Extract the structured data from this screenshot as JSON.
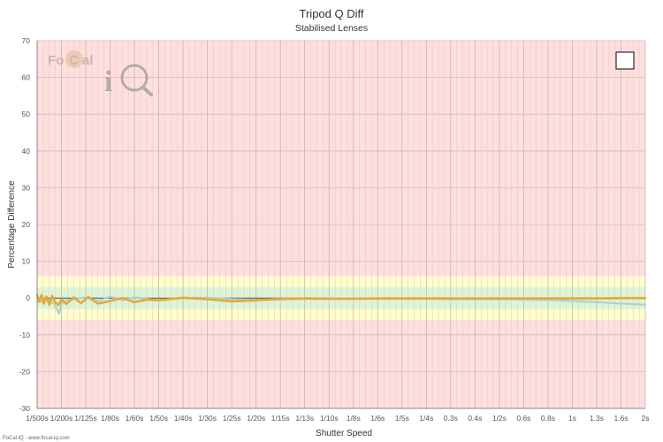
{
  "chart_data": {
    "type": "line",
    "title": "Tripod Q Diff",
    "subtitle": "Stabilised Lenses",
    "xlabel": "Shutter Speed",
    "ylabel": "Percentage Difference",
    "ylim": [
      -30,
      70
    ],
    "yticks": [
      -30,
      -20,
      -10,
      0,
      10,
      20,
      30,
      40,
      50,
      60,
      70
    ],
    "x_tick_labels": [
      "1/500s",
      "1/200s",
      "1/125s",
      "1/80s",
      "1/60s",
      "1/50s",
      "1/40s",
      "1/30s",
      "1/25s",
      "1/20s",
      "1/15s",
      "1/13s",
      "1/10s",
      "1/8s",
      "1/6s",
      "1/5s",
      "1/4s",
      "0.3s",
      "0.4s",
      "1/2s",
      "0.6s",
      "0.8s",
      "1s",
      "1.3s",
      "1.6s",
      "2s"
    ],
    "grid": true,
    "bands": [
      {
        "name": "red",
        "from": -30,
        "to": 70,
        "color": "#ffdede"
      },
      {
        "name": "yellow",
        "from": -6,
        "to": 6,
        "color": "#ffffcc"
      },
      {
        "name": "green",
        "from": -3,
        "to": 3,
        "color": "#ddf5d5"
      }
    ],
    "series": [
      {
        "color": "#a9d3d3",
        "points": [
          [
            0.0,
            0.6
          ],
          [
            0.1,
            -0.4
          ],
          [
            0.22,
            -1.2
          ],
          [
            0.35,
            0.3
          ],
          [
            0.5,
            -0.8
          ],
          [
            0.7,
            -1.6
          ],
          [
            0.9,
            -4.2
          ],
          [
            1.0,
            -1.5
          ],
          [
            1.2,
            -0.6
          ],
          [
            1.5,
            -0.3
          ],
          [
            2.0,
            0.2
          ],
          [
            2.5,
            -0.8
          ],
          [
            3.0,
            0.4
          ],
          [
            3.5,
            -0.5
          ],
          [
            4.0,
            0.2
          ],
          [
            5.0,
            -0.6
          ],
          [
            6.0,
            0.0
          ],
          [
            7.0,
            0.1
          ],
          [
            8.0,
            -0.3
          ],
          [
            9.0,
            -0.5
          ],
          [
            10.0,
            -0.4
          ],
          [
            11.0,
            -0.2
          ],
          [
            12.0,
            -0.1
          ],
          [
            13.0,
            -0.1
          ],
          [
            14.0,
            -0.2
          ],
          [
            15.0,
            -0.2
          ],
          [
            16.0,
            -0.2
          ],
          [
            17.0,
            -0.3
          ],
          [
            18.0,
            -0.3
          ],
          [
            19.0,
            -0.3
          ],
          [
            20.0,
            -0.4
          ],
          [
            21.0,
            -0.5
          ],
          [
            22.0,
            -0.8
          ],
          [
            23.0,
            -1.1
          ],
          [
            24.0,
            -1.5
          ],
          [
            25.0,
            -1.8
          ]
        ]
      },
      {
        "color": "#e8a838",
        "points": [
          [
            0.0,
            0.9
          ],
          [
            0.08,
            -1.0
          ],
          [
            0.18,
            0.8
          ],
          [
            0.28,
            -1.5
          ],
          [
            0.38,
            0.4
          ],
          [
            0.5,
            -1.8
          ],
          [
            0.62,
            0.6
          ],
          [
            0.75,
            -1.2
          ],
          [
            0.88,
            -1.9
          ],
          [
            1.0,
            -0.3
          ],
          [
            1.2,
            -1.6
          ],
          [
            1.5,
            0.2
          ],
          [
            1.8,
            -1.4
          ],
          [
            2.1,
            0.3
          ],
          [
            2.5,
            -1.5
          ],
          [
            3.0,
            -0.8
          ],
          [
            3.5,
            0.0
          ],
          [
            4.0,
            -1.1
          ],
          [
            4.5,
            -0.4
          ],
          [
            5.0,
            -0.6
          ],
          [
            6.0,
            0.1
          ],
          [
            7.0,
            -0.3
          ],
          [
            8.0,
            -0.9
          ],
          [
            9.0,
            -0.6
          ],
          [
            10.0,
            -0.2
          ],
          [
            11.0,
            -0.1
          ],
          [
            12.0,
            -0.2
          ],
          [
            13.0,
            -0.2
          ],
          [
            14.0,
            -0.1
          ],
          [
            15.0,
            -0.1
          ],
          [
            16.0,
            -0.1
          ],
          [
            17.0,
            -0.1
          ],
          [
            18.0,
            -0.1
          ],
          [
            19.0,
            -0.1
          ],
          [
            20.0,
            -0.1
          ],
          [
            21.0,
            -0.1
          ],
          [
            22.0,
            -0.1
          ],
          [
            23.0,
            -0.1
          ],
          [
            24.0,
            0.0
          ],
          [
            25.0,
            0.0
          ]
        ]
      }
    ],
    "legend_box": "top-right",
    "logo_text": "FoCal iQ",
    "footer": "FoCal iQ - www.focal-iq.com"
  }
}
